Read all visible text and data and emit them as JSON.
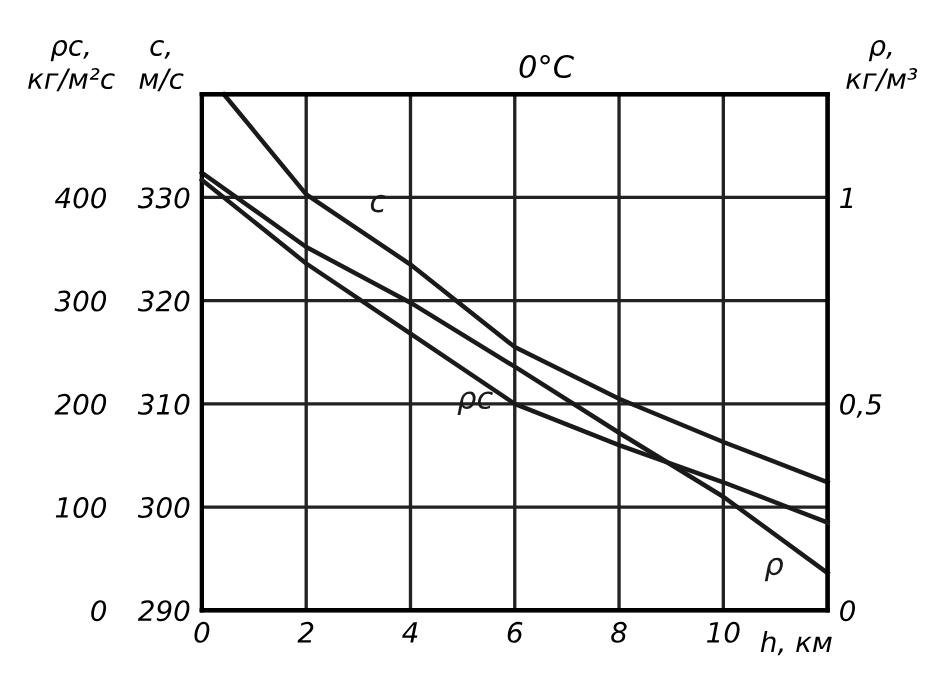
{
  "chart_data": {
    "type": "line",
    "title": "0°C",
    "xlabel": "h, км",
    "ylabel": "c, м/с",
    "y2label": "ρ, кг/м³",
    "y3label": "ρc, кг/м²с",
    "xlim": [
      0,
      12
    ],
    "xticks": [
      0,
      2,
      4,
      6,
      8,
      10
    ],
    "ylim": [
      290,
      340
    ],
    "yticks": [
      290,
      300,
      310,
      320,
      330
    ],
    "y2lim": [
      0,
      1.25
    ],
    "y2ticks": [
      0,
      {
        "value": 0.5,
        "label": "0,5"
      },
      1
    ],
    "y3lim": [
      0,
      500
    ],
    "y3ticks": [
      0,
      100,
      200,
      300,
      400
    ],
    "grid": true,
    "legend": false,
    "marker": "none",
    "line_style": "solid",
    "series": [
      {
        "name": "c",
        "color": "#1a1a1a",
        "axis": "y",
        "x": [
          0.42,
          2,
          4,
          6,
          8,
          10,
          12
        ],
        "values": [
          340,
          330.3,
          323.5,
          315.5,
          310.5,
          306.3,
          302.4
        ]
      },
      {
        "name": "ρ",
        "color": "#1a1a1a",
        "axis": "y2",
        "x": [
          0,
          2,
          4,
          6,
          8,
          10,
          12
        ],
        "values": [
          1.06,
          0.88,
          0.745,
          0.59,
          0.43,
          0.275,
          0.09
        ]
      },
      {
        "name": "ρc",
        "color": "#1a1a1a",
        "axis": "y3",
        "x": [
          0,
          2,
          4,
          6,
          8,
          10,
          12
        ],
        "values": [
          417,
          336,
          268,
          200,
          160,
          124,
          85
        ]
      }
    ]
  }
}
